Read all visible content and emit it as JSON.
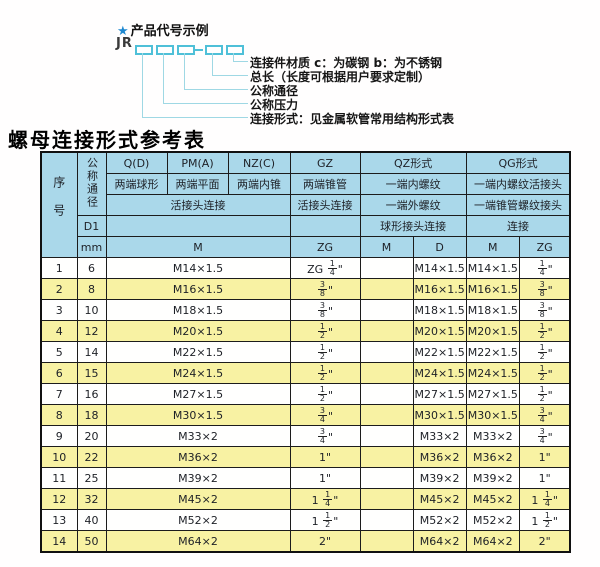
{
  "diagram": {
    "star": "★",
    "title": "产品代号示例",
    "code_prefix": "JR",
    "labels": [
      "连接件材质  c：为碳钢  b：为不锈钢",
      "总长（长度可根据用户要求定制）",
      "公称通径",
      "公称压力",
      "连接形式：见金属软管常用结构形式表"
    ]
  },
  "table": {
    "title": "螺母连接形式参考表",
    "header": {
      "seq": "序号",
      "dn": "公称通径",
      "q": "Q(D)",
      "pm": "PM(A)",
      "nz": "NZ(C)",
      "gz": "GZ",
      "qz": "QZ形式",
      "qg": "QG形式",
      "q_ends": "两端球形",
      "pm_ends": "两端平面",
      "nz_ends": "两端内锥",
      "gz_ends": "两端锥管",
      "qz_row2": "一端内螺纹",
      "qg_row2": "一端内螺纹活接头",
      "qpmnz_conn": "活接头连接",
      "gz_conn": "活接头连接",
      "qz_row3": "一端外螺纹",
      "qg_row3": "一端锥管螺纹接头",
      "d1": "D1",
      "qz_row4": "球形接头连接",
      "qg_row4": "连接",
      "mm": "mm",
      "m": "M",
      "zg": "ZG",
      "qz_m": "M",
      "qz_d": "D",
      "qg_m": "M",
      "qg_zg": "ZG"
    },
    "rows": [
      [
        "1",
        "6",
        "M14×1.5",
        "ZG 1/4\"",
        "",
        "M14×1.5",
        "M14×1.5",
        "1/4\""
      ],
      [
        "2",
        "8",
        "M16×1.5",
        "3/8\"",
        "",
        "M16×1.5",
        "M16×1.5",
        "3/8\""
      ],
      [
        "3",
        "10",
        "M18×1.5",
        "3/8\"",
        "",
        "M18×1.5",
        "M18×1.5",
        "3/8\""
      ],
      [
        "4",
        "12",
        "M20×1.5",
        "1/2\"",
        "",
        "M20×1.5",
        "M20×1.5",
        "1/2\""
      ],
      [
        "5",
        "14",
        "M22×1.5",
        "1/2\"",
        "",
        "M22×1.5",
        "M22×1.5",
        "1/2\""
      ],
      [
        "6",
        "15",
        "M24×1.5",
        "1/2\"",
        "",
        "M24×1.5",
        "M24×1.5",
        "1/2\""
      ],
      [
        "7",
        "16",
        "M27×1.5",
        "1/2\"",
        "",
        "M27×1.5",
        "M27×1.5",
        "1/2\""
      ],
      [
        "8",
        "18",
        "M30×1.5",
        "3/4\"",
        "",
        "M30×1.5",
        "M30×1.5",
        "3/4\""
      ],
      [
        "9",
        "20",
        "M33×2",
        "3/4\"",
        "",
        "M33×2",
        "M33×2",
        "3/4\""
      ],
      [
        "10",
        "22",
        "M36×2",
        "1\"",
        "",
        "M36×2",
        "M36×2",
        "1\""
      ],
      [
        "11",
        "25",
        "M39×2",
        "1\"",
        "",
        "M39×2",
        "M39×2",
        "1\""
      ],
      [
        "12",
        "32",
        "M45×2",
        "1 1/4\"",
        "",
        "M45×2",
        "M45×2",
        "1 1/4\""
      ],
      [
        "13",
        "40",
        "M52×2",
        "1 1/2\"",
        "",
        "M52×2",
        "M52×2",
        "1 1/2\""
      ],
      [
        "14",
        "50",
        "M64×2",
        "2\"",
        "",
        "M64×2",
        "M64×2",
        "2\""
      ]
    ],
    "colors": {
      "header_bg": "#aad8ea",
      "alt_row_bg": "#f8f2a3",
      "diagram_line": "#9fd8e4",
      "box_border": "#4fc0d8",
      "star_blue": "#1e88d0"
    }
  }
}
